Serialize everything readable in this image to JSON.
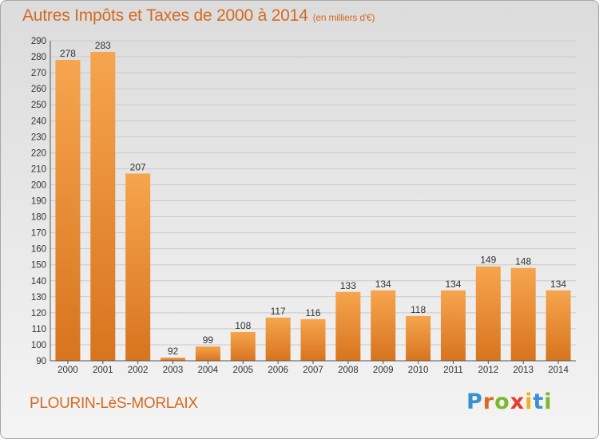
{
  "header": {
    "title": "Autres Impôts et Taxes de 2000 à 2014",
    "unit": "(en milliers d'€)"
  },
  "footer": {
    "city": "PLOURIN-LèS-MORLAIX",
    "logo_letters": [
      "P",
      "r",
      "o",
      "x",
      "i",
      "t",
      "i"
    ],
    "logo_colors": [
      "#3a8fd0",
      "#e06a1c",
      "#7cb82f",
      "#e63b2e",
      "#f2b01e",
      "#3a8fd0",
      "#7cb82f"
    ]
  },
  "colors": {
    "bar_light": "#f6a54e",
    "bar_dark": "#d8741e",
    "accent": "#d46a22"
  },
  "chart_data": {
    "type": "bar",
    "title": "Autres Impôts et Taxes de 2000 à 2014",
    "ylabel": "",
    "xlabel": "",
    "categories": [
      "2000",
      "2001",
      "2002",
      "2003",
      "2004",
      "2005",
      "2006",
      "2007",
      "2008",
      "2009",
      "2010",
      "2011",
      "2012",
      "2013",
      "2014"
    ],
    "values": [
      278,
      283,
      207,
      92,
      99,
      108,
      117,
      116,
      133,
      134,
      118,
      134,
      149,
      148,
      134
    ],
    "ylim": [
      90,
      290
    ],
    "yticks": [
      90,
      100,
      110,
      120,
      130,
      140,
      150,
      160,
      170,
      180,
      190,
      200,
      210,
      220,
      230,
      240,
      250,
      260,
      270,
      280,
      290
    ],
    "grid": true,
    "legend": "none"
  }
}
